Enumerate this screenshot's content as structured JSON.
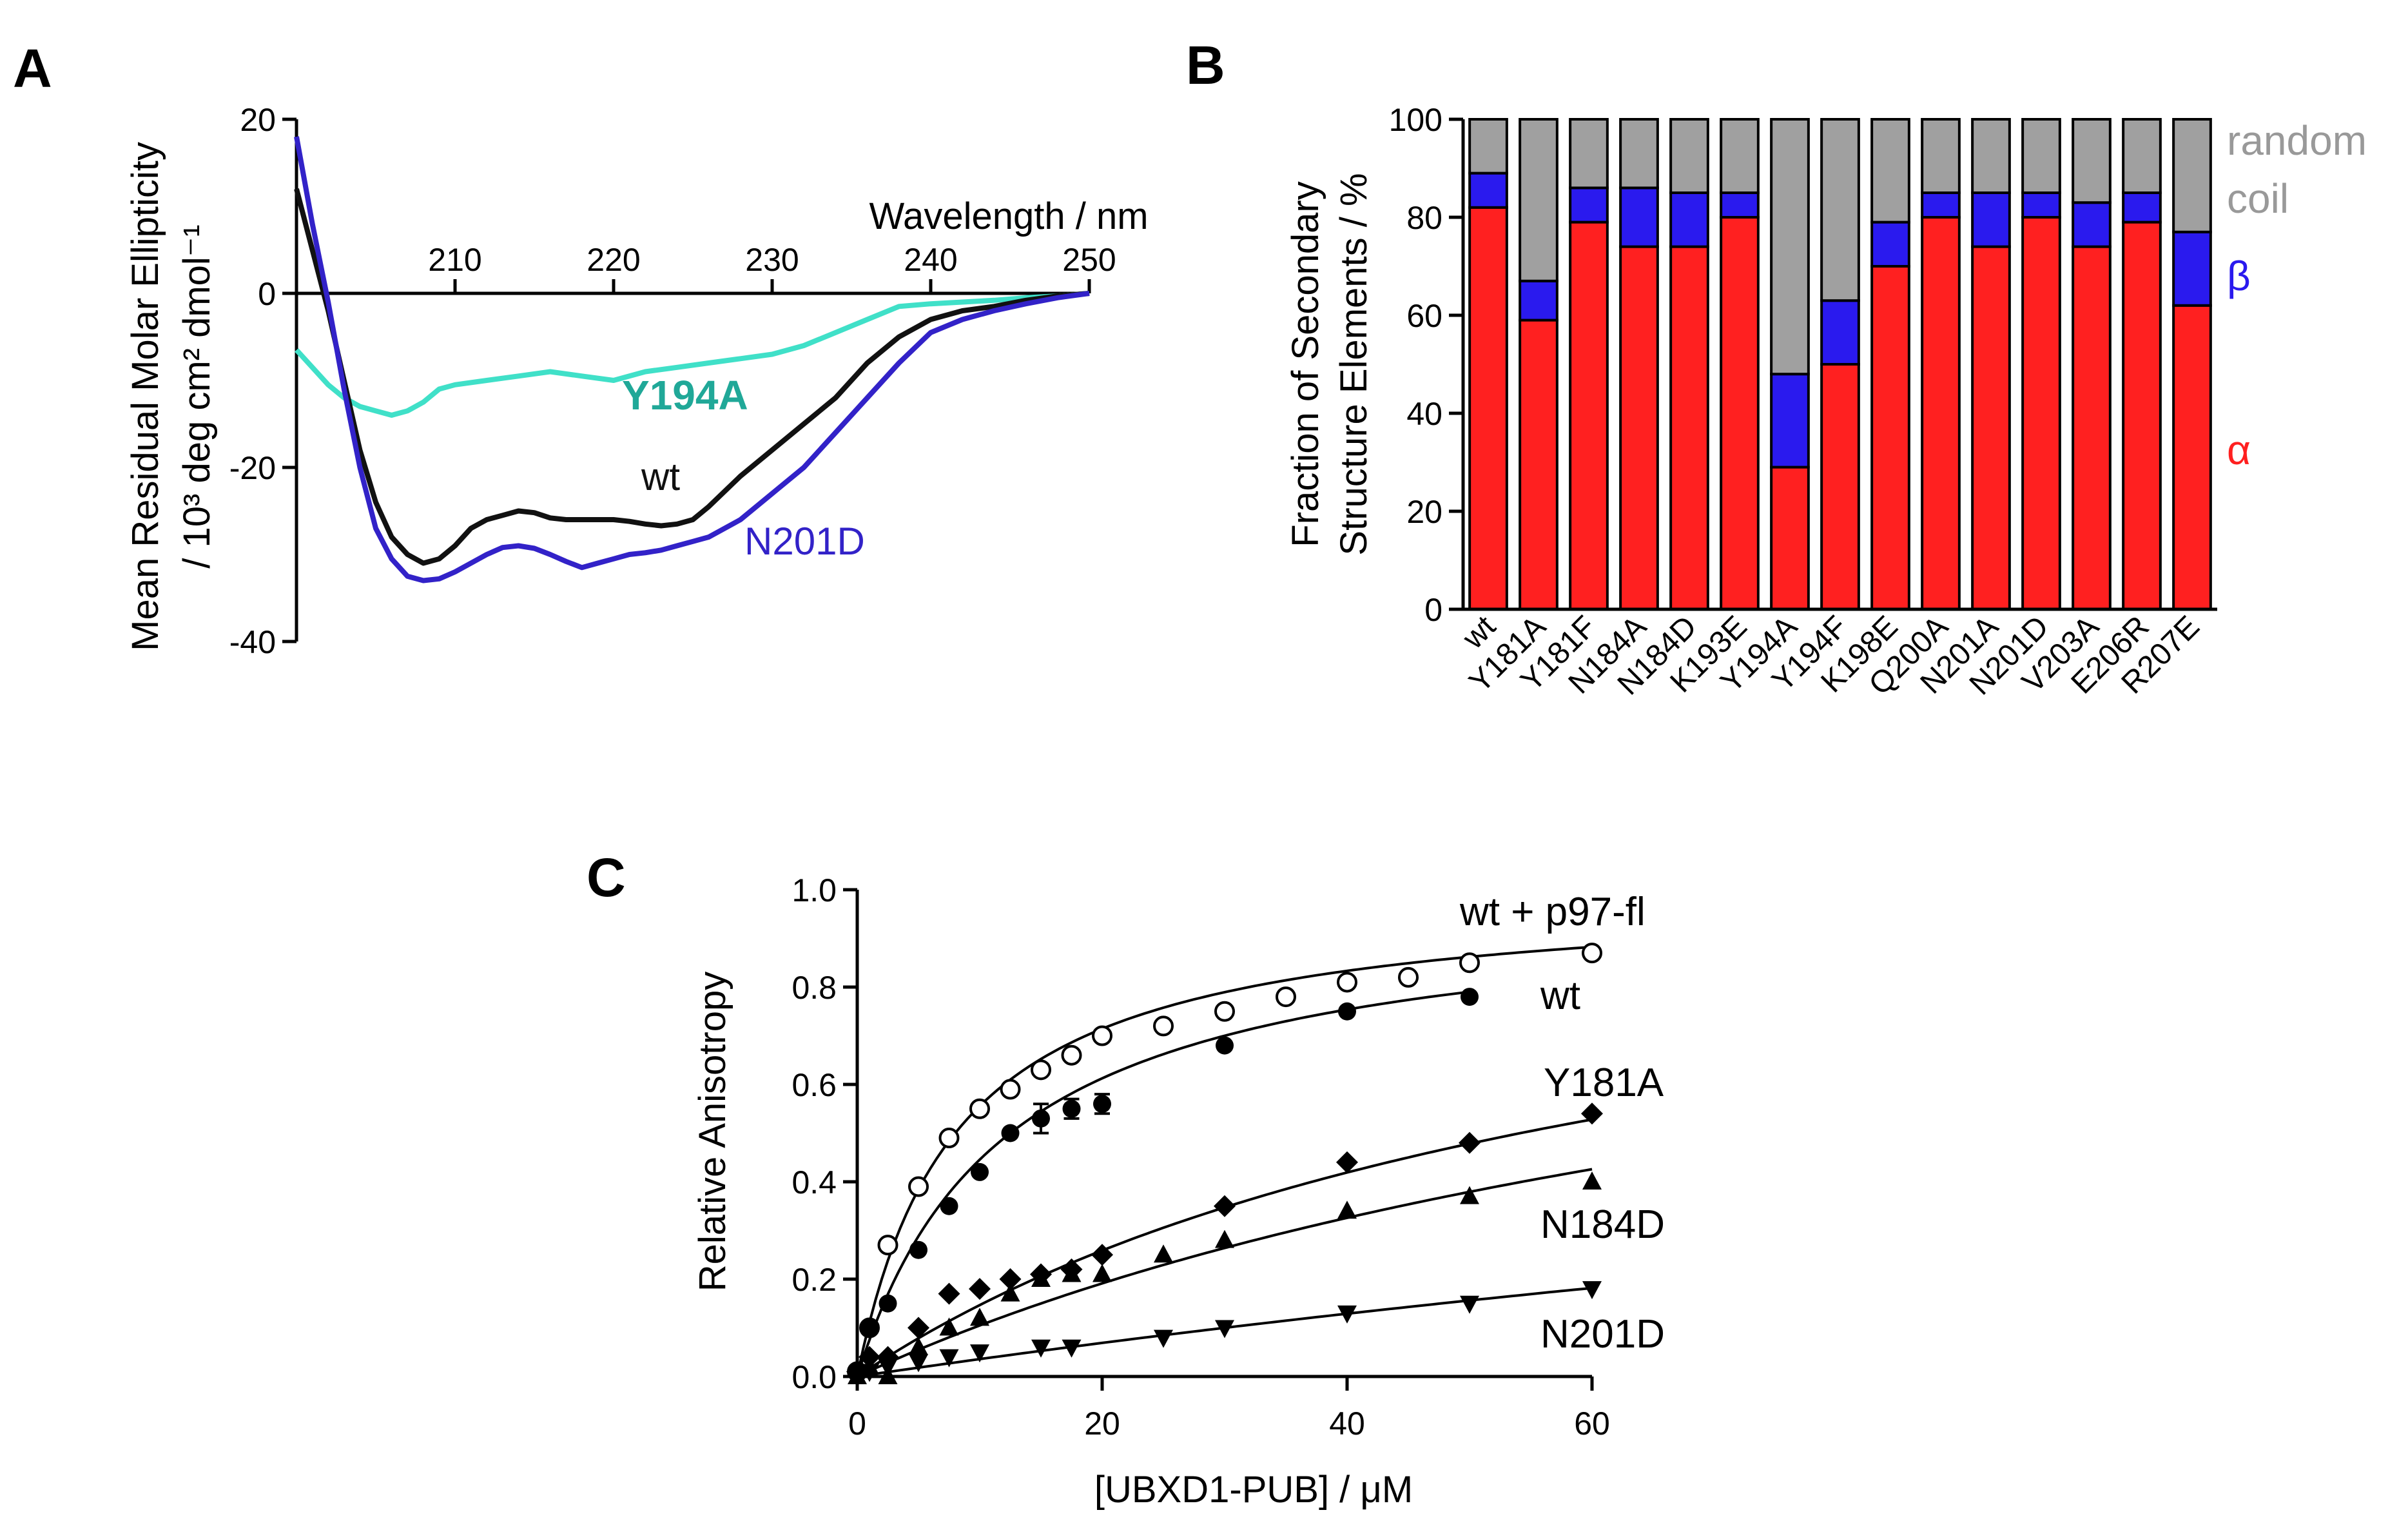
{
  "panels": {
    "A": "A",
    "B": "B",
    "C": "C"
  },
  "chart_data": [
    {
      "panel": "A",
      "type": "line",
      "title": "",
      "xlabel": "Wavelength / nm",
      "ylabel_line1": "Mean Residual Molar Ellipticity",
      "ylabel_line2": "/ 10³ deg cm² dmol⁻¹",
      "xlim": [
        200,
        250
      ],
      "ylim": [
        -40,
        20
      ],
      "xticks": [
        210,
        220,
        230,
        240,
        250
      ],
      "yticks": [
        20,
        0,
        -20,
        -40
      ],
      "series": [
        {
          "name": "Y194A",
          "color": "#40E0C8",
          "x": [
            200,
            201,
            202,
            203,
            204,
            205,
            206,
            207,
            208,
            209,
            210,
            212,
            214,
            216,
            218,
            220,
            222,
            224,
            226,
            228,
            230,
            232,
            234,
            236,
            238,
            240,
            242,
            244,
            246,
            248,
            250
          ],
          "y": [
            -6.5,
            -8.5,
            -10.5,
            -12,
            -13,
            -13.5,
            -14,
            -13.5,
            -12.5,
            -11,
            -10.5,
            -10,
            -9.5,
            -9,
            -9.5,
            -10,
            -9,
            -8.5,
            -8,
            -7.5,
            -7,
            -6,
            -4.5,
            -3,
            -1.5,
            -1.2,
            -1,
            -0.8,
            -0.5,
            -0.3,
            0
          ]
        },
        {
          "name": "wt",
          "color": "#111111",
          "x": [
            200,
            201,
            202,
            203,
            204,
            205,
            206,
            207,
            208,
            209,
            210,
            211,
            212,
            213,
            214,
            215,
            216,
            217,
            218,
            219,
            220,
            221,
            222,
            223,
            224,
            225,
            226,
            228,
            230,
            232,
            234,
            236,
            238,
            240,
            242,
            244,
            246,
            248,
            250
          ],
          "y": [
            12,
            5,
            -2,
            -10,
            -18,
            -24,
            -28,
            -30,
            -31,
            -30.5,
            -29,
            -27,
            -26,
            -25.5,
            -25,
            -25.2,
            -25.8,
            -26,
            -26,
            -26,
            -26,
            -26.2,
            -26.5,
            -26.7,
            -26.5,
            -26,
            -24.5,
            -21,
            -18,
            -15,
            -12,
            -8,
            -5,
            -3,
            -2,
            -1.5,
            -0.8,
            -0.3,
            0
          ]
        },
        {
          "name": "N201D",
          "color": "#3222C8",
          "x": [
            200,
            201,
            202,
            203,
            204,
            205,
            206,
            207,
            208,
            209,
            210,
            211,
            212,
            213,
            214,
            215,
            216,
            217,
            218,
            219,
            220,
            221,
            222,
            223,
            224,
            225,
            226,
            228,
            230,
            232,
            234,
            236,
            238,
            240,
            242,
            244,
            246,
            248,
            250
          ],
          "y": [
            18,
            8,
            -1,
            -11,
            -20,
            -27,
            -30.5,
            -32.5,
            -33,
            -32.8,
            -32,
            -31,
            -30,
            -29.2,
            -29,
            -29.3,
            -30,
            -30.8,
            -31.5,
            -31,
            -30.5,
            -30,
            -29.8,
            -29.5,
            -29,
            -28.5,
            -28,
            -26,
            -23,
            -20,
            -16,
            -12,
            -8,
            -4.5,
            -3,
            -2,
            -1.2,
            -0.5,
            0
          ]
        }
      ],
      "annotations": [
        {
          "text": "Y194A",
          "color": "#20A898"
        },
        {
          "text": "wt",
          "color": "#111111"
        },
        {
          "text": "N201D",
          "color": "#3222C8"
        }
      ]
    },
    {
      "panel": "B",
      "type": "bar",
      "stacked": true,
      "ylabel_line1": "Fraction of Secondary",
      "ylabel_line2": "Structure Elements / %",
      "ylim": [
        0,
        100
      ],
      "yticks": [
        0,
        20,
        40,
        60,
        80,
        100
      ],
      "categories": [
        "wt",
        "Y181A",
        "Y181F",
        "N184A",
        "N184D",
        "K193E",
        "Y194A",
        "Y194F",
        "K198E",
        "Q200A",
        "N201A",
        "N201D",
        "V203A",
        "E206R",
        "R207E"
      ],
      "series": [
        {
          "name": "α",
          "color": "#FF2020",
          "values": [
            82,
            59,
            79,
            74,
            74,
            80,
            29,
            50,
            70,
            80,
            74,
            80,
            74,
            79,
            62
          ]
        },
        {
          "name": "β",
          "color": "#2A1AEE",
          "values": [
            7,
            8,
            7,
            12,
            11,
            5,
            19,
            13,
            9,
            5,
            11,
            5,
            9,
            6,
            15
          ]
        },
        {
          "name": "random coil",
          "color": "#A0A0A0",
          "values": [
            11,
            33,
            14,
            14,
            15,
            15,
            52,
            37,
            21,
            15,
            15,
            15,
            17,
            15,
            23
          ]
        }
      ],
      "legend": [
        {
          "text": "random",
          "color": "#999999"
        },
        {
          "text": "coil",
          "color": "#999999"
        },
        {
          "text": "β",
          "color": "#2A1AEE"
        },
        {
          "text": "α",
          "color": "#FF2020"
        }
      ]
    },
    {
      "panel": "C",
      "type": "scatter",
      "xlabel": "[UBXD1-PUB] / μM",
      "ylabel": "Relative Anisotropy",
      "xlim": [
        0,
        60
      ],
      "ylim": [
        0,
        1.0
      ],
      "xticks": [
        0,
        20,
        40,
        60
      ],
      "yticks": [
        0.0,
        0.2,
        0.4,
        0.6,
        0.8,
        1.0
      ],
      "series": [
        {
          "name": "wt + p97-fl",
          "marker": "circle-open",
          "Bmax": 1.0,
          "Kd": 8.0,
          "x": [
            0,
            1,
            2.5,
            5,
            7.5,
            10,
            12.5,
            15,
            17.5,
            20,
            25,
            30,
            35,
            40,
            45,
            50,
            60
          ],
          "y": [
            0.01,
            0.1,
            0.27,
            0.39,
            0.49,
            0.55,
            0.59,
            0.63,
            0.66,
            0.7,
            0.72,
            0.75,
            0.78,
            0.81,
            0.82,
            0.85,
            0.87
          ]
        },
        {
          "name": "wt",
          "marker": "circle-filled",
          "Bmax": 0.98,
          "Kd": 12.0,
          "x": [
            0,
            1,
            2.5,
            5,
            7.5,
            10,
            12.5,
            15,
            17.5,
            20,
            30,
            40,
            50
          ],
          "y": [
            0.01,
            0.1,
            0.15,
            0.26,
            0.35,
            0.42,
            0.5,
            0.53,
            0.55,
            0.56,
            0.68,
            0.75,
            0.78
          ],
          "errors": [
            0,
            0,
            0,
            0,
            0,
            0,
            0,
            0.03,
            0.02,
            0.02,
            0,
            0,
            0
          ]
        },
        {
          "name": "Y181A",
          "marker": "diamond",
          "Bmax": 1.1,
          "Kd": 65.0,
          "x": [
            0,
            1,
            2.5,
            5,
            7.5,
            10,
            12.5,
            15,
            17.5,
            20,
            30,
            40,
            50,
            60
          ],
          "y": [
            0.01,
            0.04,
            0.04,
            0.1,
            0.17,
            0.18,
            0.2,
            0.21,
            0.22,
            0.25,
            0.35,
            0.44,
            0.48,
            0.54
          ]
        },
        {
          "name": "N184D",
          "marker": "triangle-up",
          "Bmax": 1.1,
          "Kd": 95.0,
          "x": [
            0,
            1,
            2.5,
            5,
            7.5,
            10,
            12.5,
            15,
            17.5,
            20,
            25,
            30,
            40,
            50,
            60
          ],
          "y": [
            0.0,
            0.02,
            0.0,
            0.06,
            0.1,
            0.12,
            0.17,
            0.2,
            0.21,
            0.21,
            0.25,
            0.28,
            0.34,
            0.37,
            0.4
          ]
        },
        {
          "name": "N201D",
          "marker": "triangle-down",
          "Bmax": 1.0,
          "Kd": 270.0,
          "x": [
            0,
            1,
            2.5,
            5,
            7.5,
            10,
            15,
            17.5,
            25,
            30,
            40,
            50,
            60
          ],
          "y": [
            0.0,
            0.01,
            0.02,
            0.03,
            0.04,
            0.05,
            0.06,
            0.06,
            0.08,
            0.1,
            0.13,
            0.15,
            0.18
          ]
        }
      ],
      "labels": [
        "wt + p97-fl",
        "wt",
        "Y181A",
        "N184D",
        "N201D"
      ]
    }
  ]
}
